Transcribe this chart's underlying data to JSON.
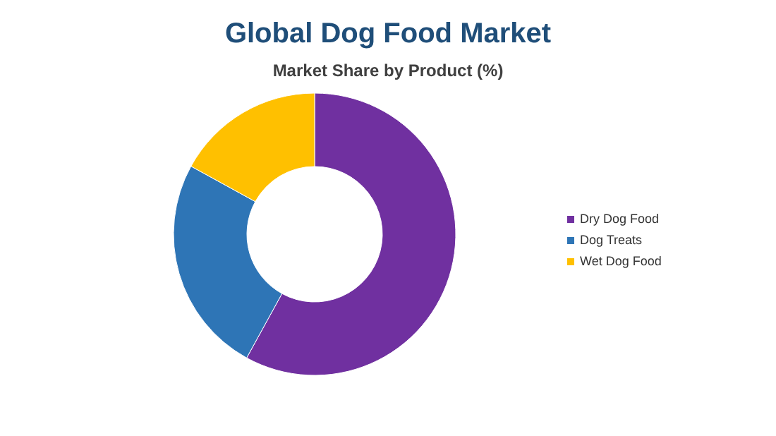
{
  "chart_data": {
    "type": "donut",
    "title": "Global Dog Food Market",
    "subtitle": "Market Share by Product (%)",
    "categories": [
      "Dry Dog Food",
      "Dog Treats",
      "Wet Dog Food"
    ],
    "values": [
      58,
      25,
      17
    ],
    "colors": [
      "#7030a0",
      "#2e75b6",
      "#ffc000"
    ],
    "legend": "right"
  }
}
